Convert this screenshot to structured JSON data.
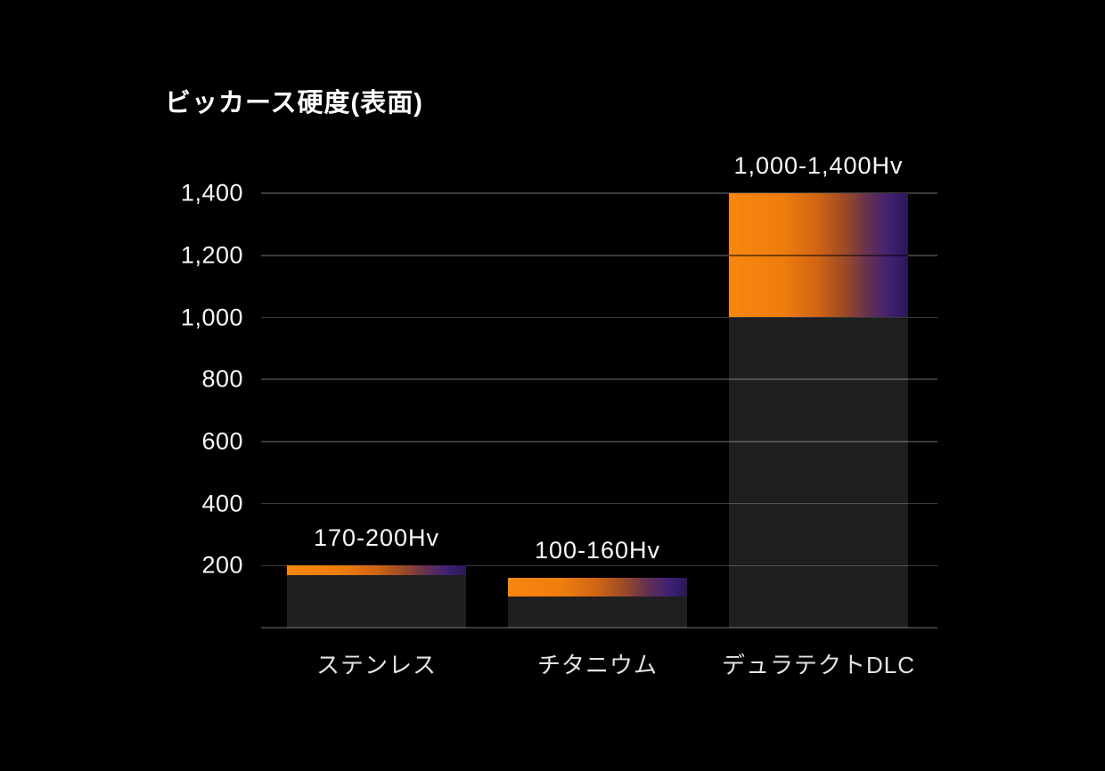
{
  "chart_data": {
    "type": "bar",
    "title": "ビッカース硬度(表面)",
    "xlabel": "",
    "ylabel": "",
    "unit": "Hv",
    "categories": [
      "ステンレス",
      "チタニウム",
      "デュラテクトDLC"
    ],
    "bars": [
      {
        "category": "ステンレス",
        "min": 170,
        "max": 200,
        "range_label": "170-200Hv"
      },
      {
        "category": "チタニウム",
        "min": 100,
        "max": 160,
        "range_label": "100-160Hv"
      },
      {
        "category": "デュラテクトDLC",
        "min": 1000,
        "max": 1400,
        "range_label": "1,000-1,400Hv"
      }
    ],
    "ylim": [
      0,
      1400
    ],
    "ytick_step": 200,
    "yticks": [
      {
        "value": 200,
        "label": "200"
      },
      {
        "value": 400,
        "label": "400"
      },
      {
        "value": 600,
        "label": "600"
      },
      {
        "value": 800,
        "label": "800"
      },
      {
        "value": 1000,
        "label": "1,000"
      },
      {
        "value": 1200,
        "label": "1,200"
      },
      {
        "value": 1400,
        "label": "1,400"
      }
    ],
    "grid": true,
    "legend": false,
    "colors": {
      "background": "#000000",
      "gridline": "#3a3a3a",
      "bar_base": "rgba(255,255,255,0.12)",
      "text": "#f7f7f7",
      "category_text": "#e3e3e3"
    },
    "gradient_stops": [
      "#f6870f 0%",
      "#ef7d0e 30%",
      "#cf6414 50%",
      "#9a4a26 65%",
      "#633052 78%",
      "#3e2173 90%",
      "#2b1757 100%"
    ]
  }
}
